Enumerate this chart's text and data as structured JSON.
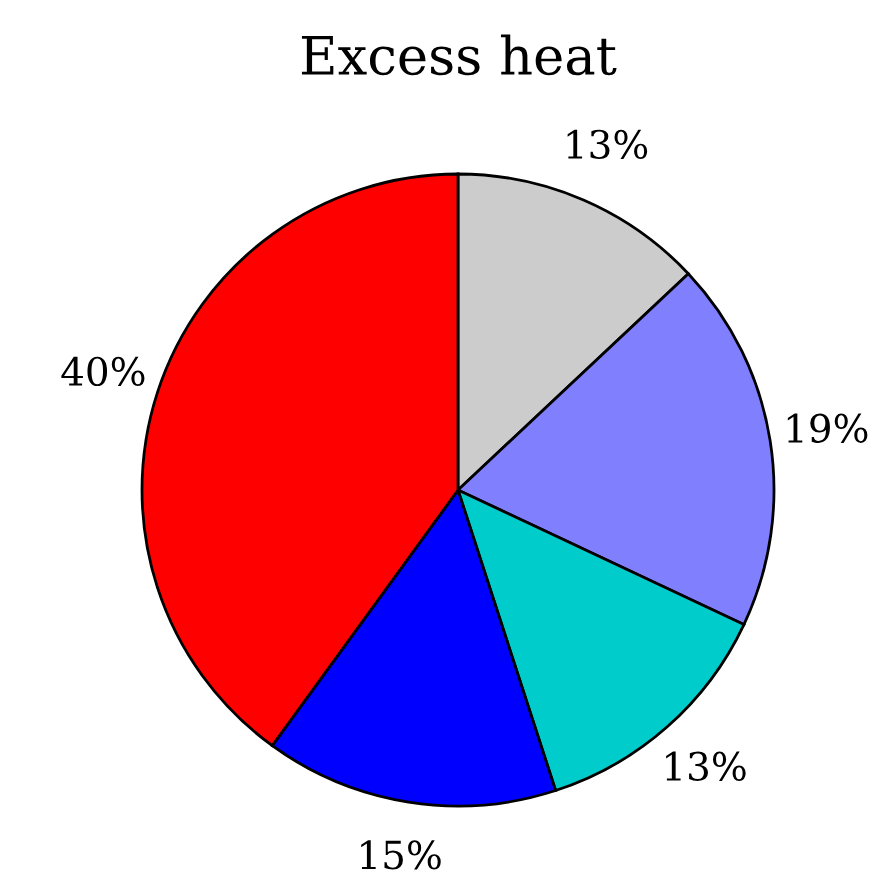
{
  "chart_data": {
    "type": "pie",
    "title": "Excess heat",
    "categories": [
      null,
      null,
      null,
      null,
      null
    ],
    "values": [
      13,
      19,
      13,
      15,
      40
    ],
    "colors": [
      "#cccccc",
      "#8080ff",
      "#00cccc",
      "#0000ff",
      "#ff0000"
    ],
    "value_labels": [
      "13%",
      "19%",
      "13%",
      "15%",
      "40%"
    ]
  }
}
